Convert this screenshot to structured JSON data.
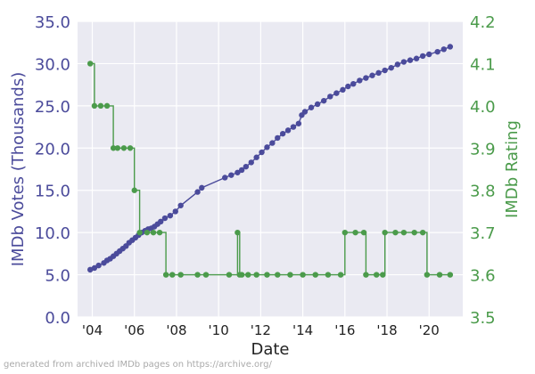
{
  "colors": {
    "votes": "#4b4b9b",
    "rating": "#4b9b4b",
    "votes_axis": "#4b4b9b",
    "rating_axis": "#4b9b4b",
    "plot_bg": "#eaeaf2",
    "grid": "#ffffff",
    "footer": "#aaaaaa"
  },
  "footer": "generated from archived IMDb pages on https://archive.org/",
  "chart_data": {
    "type": "line",
    "title": "",
    "xlabel": "Date",
    "ylabel": "IMDb Votes (Thousands)",
    "ylabel_right": "IMDb Rating",
    "xlim": [
      2003.3,
      2021.6
    ],
    "ylim": [
      0,
      35
    ],
    "ylim_right": [
      3.5,
      4.2
    ],
    "grid": true,
    "x_ticks": [
      {
        "value": 2004,
        "label": "'04"
      },
      {
        "value": 2006,
        "label": "'06"
      },
      {
        "value": 2008,
        "label": "'08"
      },
      {
        "value": 2010,
        "label": "'10"
      },
      {
        "value": 2012,
        "label": "'12"
      },
      {
        "value": 2014,
        "label": "'14"
      },
      {
        "value": 2016,
        "label": "'16"
      },
      {
        "value": 2018,
        "label": "'18"
      },
      {
        "value": 2020,
        "label": "'20"
      }
    ],
    "y_ticks": [
      {
        "value": 0,
        "label": "0.0"
      },
      {
        "value": 5,
        "label": "5.0"
      },
      {
        "value": 10,
        "label": "10.0"
      },
      {
        "value": 15,
        "label": "15.0"
      },
      {
        "value": 20,
        "label": "20.0"
      },
      {
        "value": 25,
        "label": "25.0"
      },
      {
        "value": 30,
        "label": "30.0"
      },
      {
        "value": 35,
        "label": "35.0"
      }
    ],
    "y_ticks_right": [
      {
        "value": 3.5,
        "label": "3.5"
      },
      {
        "value": 3.6,
        "label": "3.6"
      },
      {
        "value": 3.7,
        "label": "3.7"
      },
      {
        "value": 3.8,
        "label": "3.8"
      },
      {
        "value": 3.9,
        "label": "3.9"
      },
      {
        "value": 4.0,
        "label": "4.0"
      },
      {
        "value": 4.1,
        "label": "4.1"
      },
      {
        "value": 4.2,
        "label": "4.2"
      }
    ],
    "series": [
      {
        "axis": "left",
        "step": false,
        "x": [
          2003.9,
          2004.1,
          2004.3,
          2004.55,
          2004.7,
          2004.85,
          2005.0,
          2005.15,
          2005.3,
          2005.45,
          2005.6,
          2005.75,
          2005.9,
          2006.05,
          2006.2,
          2006.35,
          2006.5,
          2006.65,
          2006.8,
          2006.95,
          2007.1,
          2007.25,
          2007.45,
          2007.7,
          2007.95,
          2008.2,
          2009.0,
          2009.2,
          2010.3,
          2010.6,
          2010.9,
          2011.1,
          2011.3,
          2011.55,
          2011.8,
          2012.05,
          2012.3,
          2012.55,
          2012.8,
          2013.05,
          2013.3,
          2013.55,
          2013.8,
          2013.95,
          2014.1,
          2014.4,
          2014.7,
          2015.0,
          2015.3,
          2015.6,
          2015.9,
          2016.15,
          2016.4,
          2016.7,
          2017.0,
          2017.3,
          2017.6,
          2017.9,
          2018.2,
          2018.5,
          2018.8,
          2019.1,
          2019.4,
          2019.7,
          2020.0,
          2020.4,
          2020.7,
          2021.0
        ],
        "y": [
          5.6,
          5.8,
          6.1,
          6.4,
          6.7,
          6.9,
          7.2,
          7.5,
          7.8,
          8.1,
          8.4,
          8.8,
          9.1,
          9.4,
          9.7,
          10.0,
          10.2,
          10.4,
          10.5,
          10.7,
          11.0,
          11.3,
          11.7,
          12.0,
          12.5,
          13.2,
          14.8,
          15.3,
          16.5,
          16.8,
          17.1,
          17.4,
          17.8,
          18.3,
          18.9,
          19.5,
          20.1,
          20.6,
          21.2,
          21.7,
          22.1,
          22.5,
          22.9,
          23.9,
          24.3,
          24.8,
          25.2,
          25.6,
          26.1,
          26.5,
          26.9,
          27.3,
          27.6,
          28.0,
          28.3,
          28.6,
          28.9,
          29.2,
          29.5,
          29.9,
          30.2,
          30.4,
          30.6,
          30.9,
          31.1,
          31.4,
          31.7,
          32.0
        ]
      },
      {
        "axis": "right",
        "step": true,
        "x": [
          2003.9,
          2004.1,
          2004.4,
          2004.7,
          2005.0,
          2005.2,
          2005.5,
          2005.8,
          2006.0,
          2006.25,
          2006.6,
          2006.9,
          2007.2,
          2007.5,
          2007.8,
          2008.2,
          2009.0,
          2009.4,
          2010.5,
          2010.9,
          2011.0,
          2011.1,
          2011.4,
          2011.8,
          2012.3,
          2012.8,
          2013.4,
          2014.0,
          2014.6,
          2015.2,
          2015.8,
          2016.0,
          2016.5,
          2016.9,
          2017.0,
          2017.5,
          2017.8,
          2017.9,
          2018.4,
          2018.8,
          2019.3,
          2019.7,
          2019.9,
          2020.5,
          2021.0
        ],
        "y": [
          4.1,
          4.0,
          4.0,
          4.0,
          3.9,
          3.9,
          3.9,
          3.9,
          3.8,
          3.7,
          3.7,
          3.7,
          3.7,
          3.6,
          3.6,
          3.6,
          3.6,
          3.6,
          3.6,
          3.7,
          3.6,
          3.6,
          3.6,
          3.6,
          3.6,
          3.6,
          3.6,
          3.6,
          3.6,
          3.6,
          3.6,
          3.7,
          3.7,
          3.7,
          3.6,
          3.6,
          3.6,
          3.7,
          3.7,
          3.7,
          3.7,
          3.7,
          3.6,
          3.6,
          3.6
        ]
      }
    ]
  }
}
